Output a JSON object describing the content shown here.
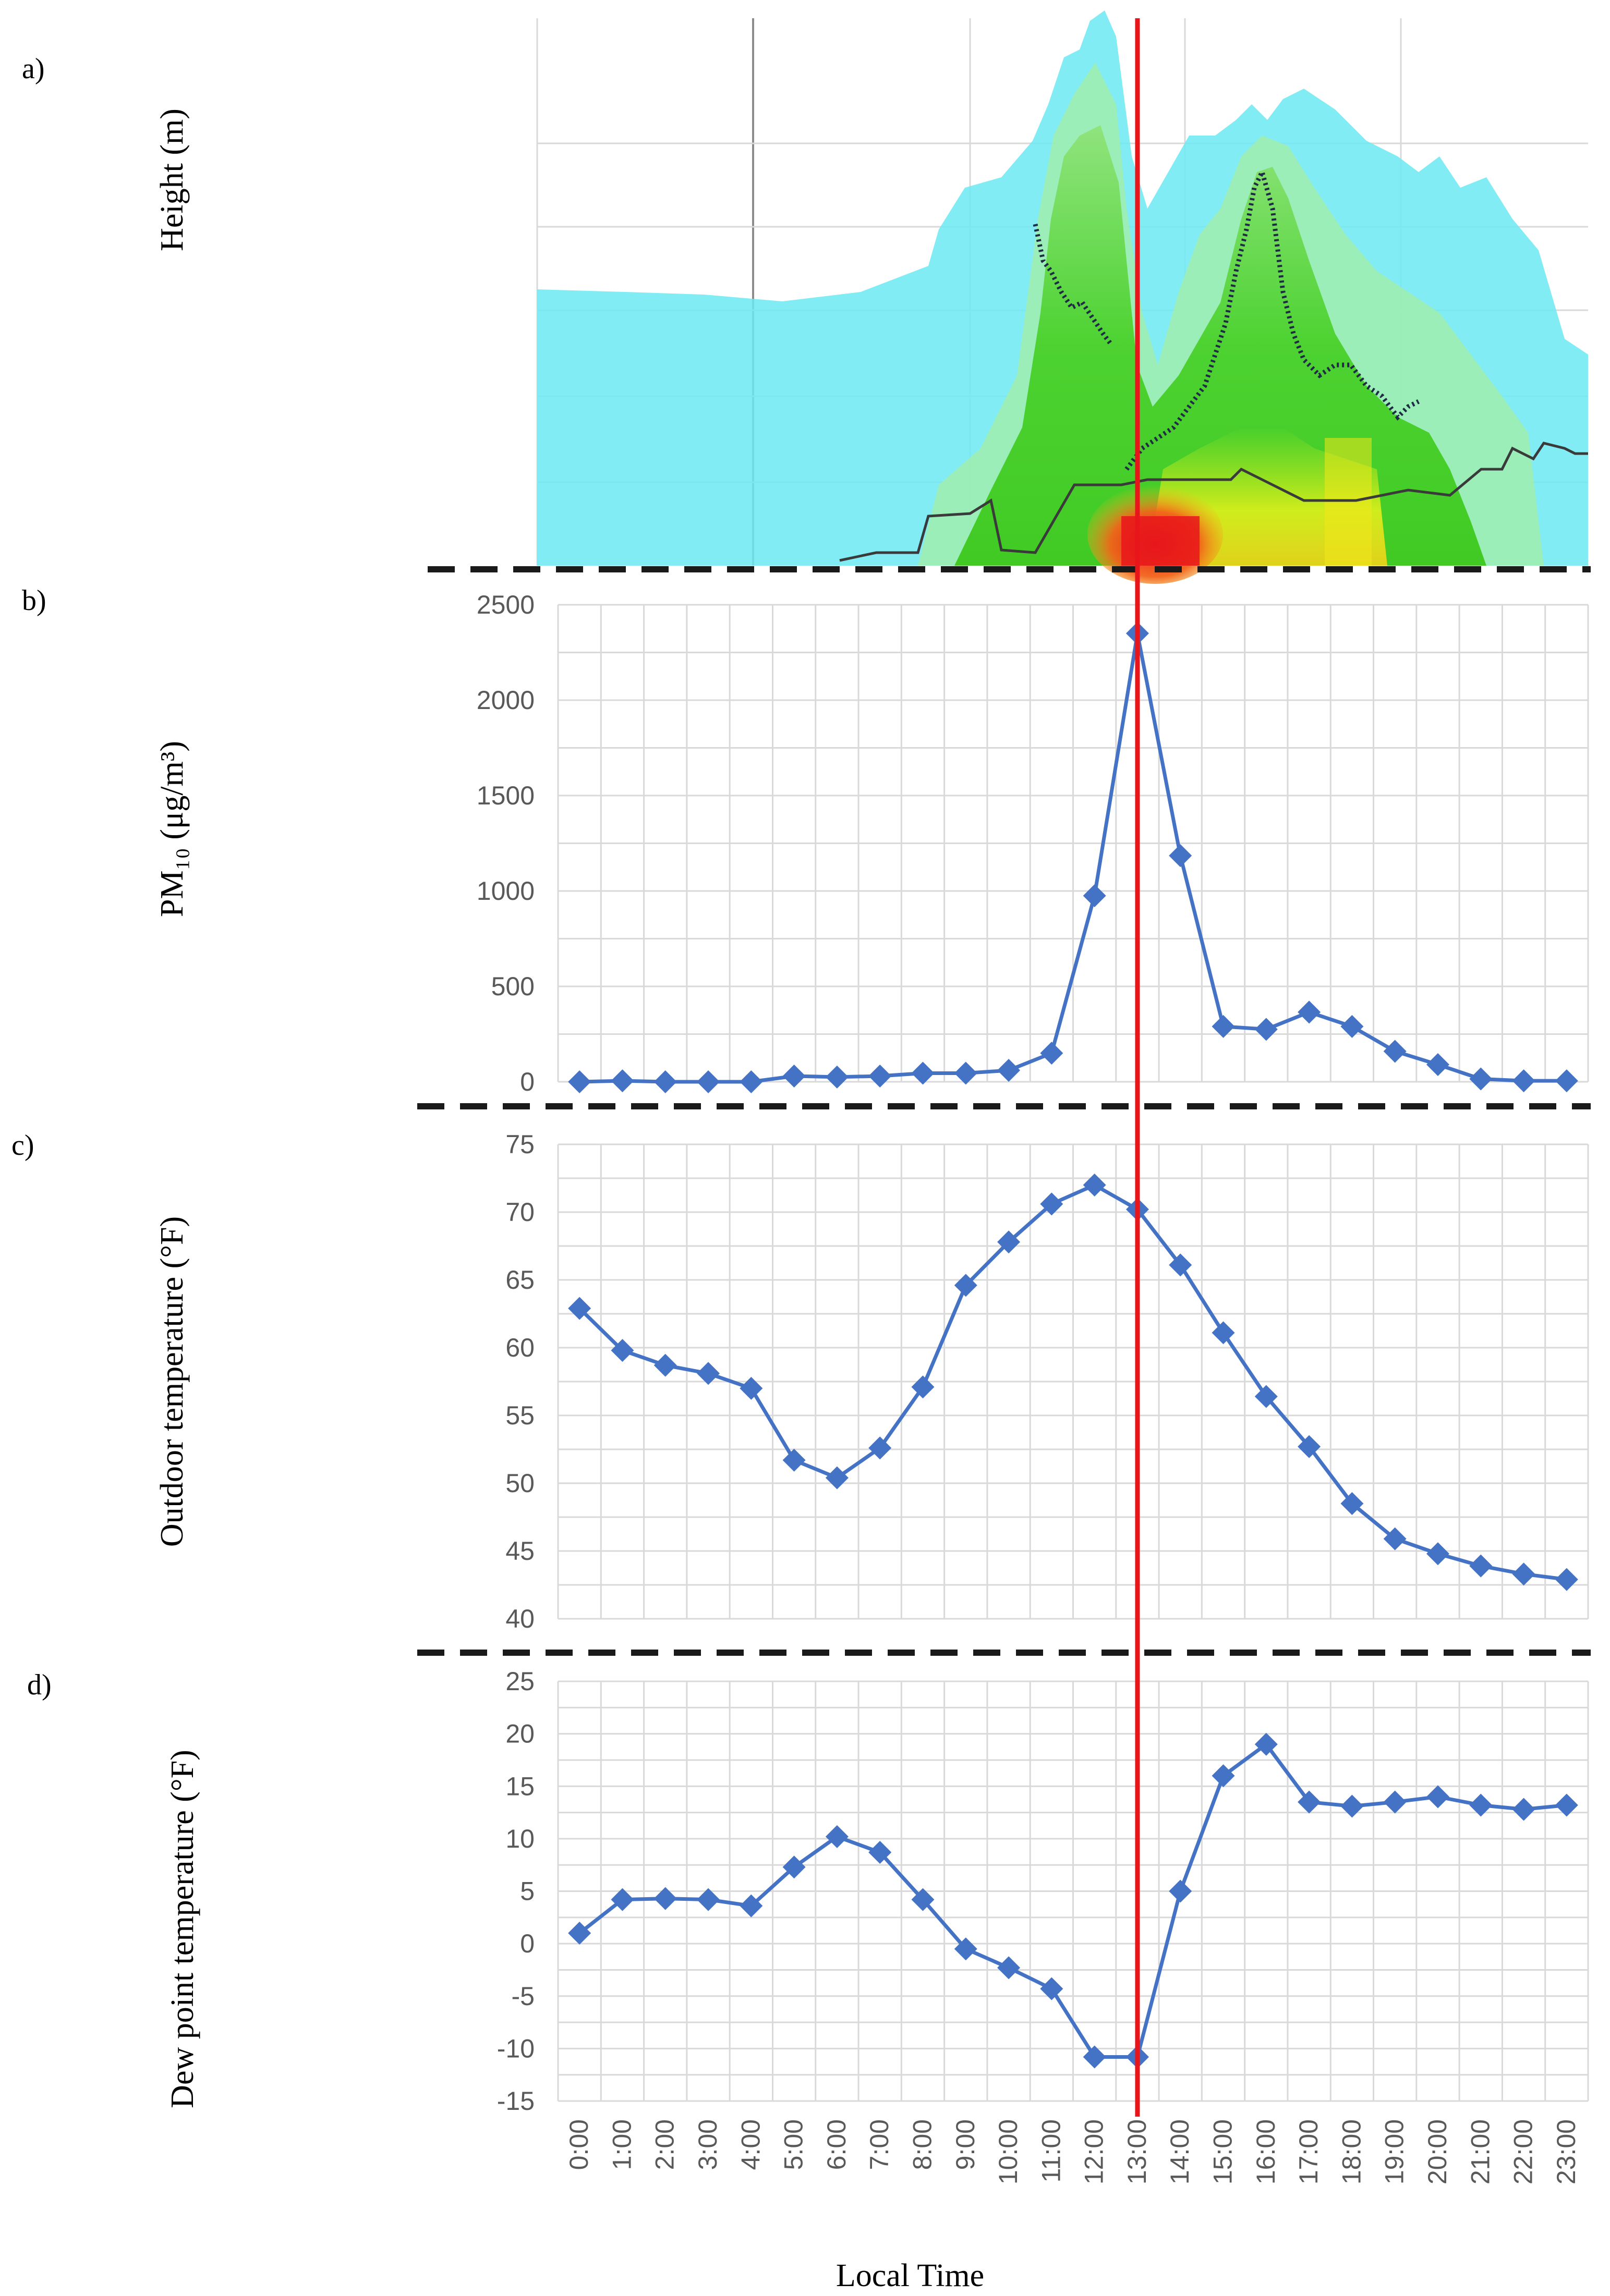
{
  "panels": {
    "a": {
      "label": "a)",
      "ylabel": "Height     (m)"
    },
    "b": {
      "label": "b)",
      "ylabel": "PM₁₀   (μg/m³)"
    },
    "c": {
      "label": "c)",
      "ylabel": "Outdoor temperature (°F)"
    },
    "d": {
      "label": "d)",
      "ylabel": "Dew point temperature (°F)"
    }
  },
  "xlabel": "Local Time",
  "colors": {
    "series": "#4472c4",
    "marker_line": "#e8161b",
    "grid": "#d9d9d9",
    "separator": "#1a1a1a",
    "tick_text": "#595959"
  },
  "marker_time": "13:00",
  "chart_data": [
    {
      "type": "heatmap",
      "panel": "a",
      "description_axis": "Height (m) vs Local Time",
      "xlabel": "Local Time",
      "ylabel": "Height     (m)",
      "colorscale": [
        "#ffffff",
        "#66e8f2",
        "#7fe07a",
        "#2ecf1c",
        "#f2f21a",
        "#f28c16",
        "#e8161b"
      ]
    },
    {
      "type": "line",
      "panel": "b",
      "xlabel": "Local Time",
      "ylabel": "PM₁₀   (μg/m³)",
      "ylim": [
        0,
        2500
      ],
      "yticks": [
        0,
        500,
        1000,
        1500,
        2000,
        2500
      ],
      "categories": [
        "0:00",
        "1:00",
        "2:00",
        "3:00",
        "4:00",
        "5:00",
        "6:00",
        "7:00",
        "8:00",
        "9:00",
        "10:00",
        "11:00",
        "12:00",
        "13:00",
        "14:00",
        "15:00",
        "16:00",
        "17:00",
        "18:00",
        "19:00",
        "20:00",
        "21:00",
        "22:00",
        "23:00"
      ],
      "values": [
        0,
        5,
        0,
        0,
        0,
        30,
        25,
        30,
        45,
        45,
        60,
        150,
        975,
        2350,
        1185,
        290,
        275,
        365,
        290,
        160,
        90,
        15,
        5,
        5
      ]
    },
    {
      "type": "line",
      "panel": "c",
      "xlabel": "Local Time",
      "ylabel": "Outdoor temperature (°F)",
      "ylim": [
        40,
        75
      ],
      "yticks": [
        40,
        45,
        50,
        55,
        60,
        65,
        70,
        75
      ],
      "categories": [
        "0:00",
        "1:00",
        "2:00",
        "3:00",
        "4:00",
        "5:00",
        "6:00",
        "7:00",
        "8:00",
        "9:00",
        "10:00",
        "11:00",
        "12:00",
        "13:00",
        "14:00",
        "15:00",
        "16:00",
        "17:00",
        "18:00",
        "19:00",
        "20:00",
        "21:00",
        "22:00",
        "23:00"
      ],
      "values": [
        62.9,
        59.8,
        58.7,
        58.1,
        57.0,
        51.7,
        50.4,
        52.6,
        57.1,
        64.6,
        67.8,
        70.6,
        72.0,
        70.2,
        66.1,
        61.1,
        56.4,
        52.7,
        48.5,
        45.9,
        44.8,
        43.9,
        43.3,
        42.9
      ]
    },
    {
      "type": "line",
      "panel": "d",
      "xlabel": "Local Time",
      "ylabel": "Dew point temperature (°F)",
      "ylim": [
        -15,
        25
      ],
      "yticks": [
        -15,
        -10,
        -5,
        0,
        5,
        10,
        15,
        20,
        25
      ],
      "categories": [
        "0:00",
        "1:00",
        "2:00",
        "3:00",
        "4:00",
        "5:00",
        "6:00",
        "7:00",
        "8:00",
        "9:00",
        "10:00",
        "11:00",
        "12:00",
        "13:00",
        "14:00",
        "15:00",
        "16:00",
        "17:00",
        "18:00",
        "19:00",
        "20:00",
        "21:00",
        "22:00",
        "23:00"
      ],
      "values": [
        1.0,
        4.2,
        4.3,
        4.2,
        3.6,
        7.3,
        10.2,
        8.7,
        4.2,
        -0.5,
        -2.3,
        -4.3,
        -10.8,
        -10.8,
        5.0,
        16.0,
        19.0,
        13.5,
        13.1,
        13.5,
        14.0,
        13.2,
        12.8,
        13.2
      ]
    }
  ]
}
